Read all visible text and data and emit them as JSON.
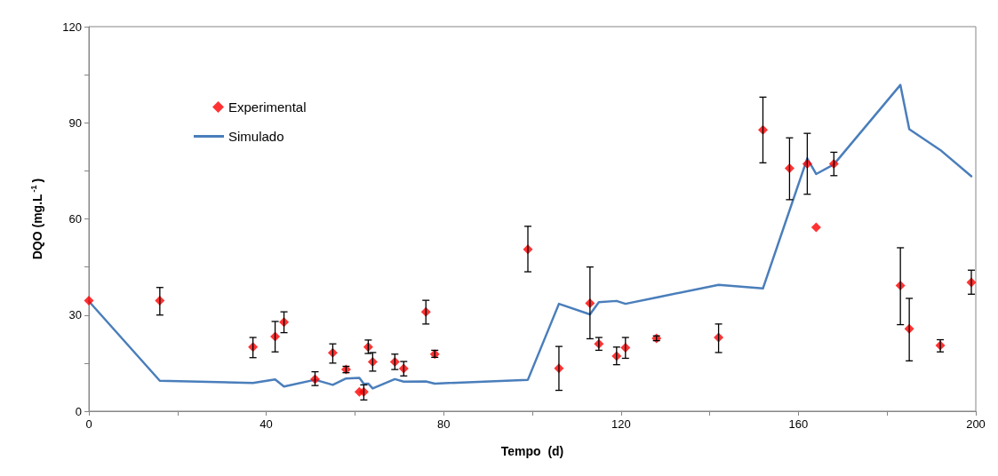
{
  "chart_data": {
    "type": "scatter",
    "xlabel": "Tempo  (d)",
    "ylabel": "DQO (mg.L$^{-1}$)",
    "xlim": [
      0,
      200
    ],
    "ylim": [
      0,
      120
    ],
    "xticks": [
      0,
      {
        "value": 20,
        "label": null
      },
      40,
      {
        "value": 60,
        "label": null
      },
      80,
      {
        "value": 100,
        "label": null
      },
      120,
      {
        "value": 140,
        "label": null
      },
      160,
      {
        "value": 180,
        "label": null
      },
      200
    ],
    "yticks": [
      0,
      {
        "value": 15,
        "label": null
      },
      30,
      {
        "value": 45,
        "label": null
      },
      60,
      {
        "value": 75,
        "label": null
      },
      90,
      {
        "value": 105,
        "label": null
      },
      120
    ],
    "grid": false,
    "legend": "top left",
    "series": [
      {
        "name": "Experimental",
        "marker": "diamond",
        "color": "#ff0000",
        "x": [
          0,
          16,
          37,
          42,
          44,
          51,
          55,
          58,
          61,
          62,
          63,
          64,
          69,
          71,
          76,
          78,
          99,
          106,
          113,
          115,
          119,
          121,
          128,
          142,
          152,
          158,
          162,
          164,
          168,
          183,
          185,
          192,
          199
        ],
        "values": [
          34.5,
          34.5,
          20,
          23.3,
          27.8,
          10,
          18.2,
          13,
          6,
          6,
          20,
          15.4,
          15.4,
          13.3,
          31,
          17.8,
          50.5,
          13.4,
          33.7,
          21,
          17.2,
          19.8,
          22.7,
          23,
          87.8,
          75.8,
          77.2,
          57.4,
          77.2,
          39.2,
          25.7,
          20.5,
          40.2
        ],
        "errors": [
          null,
          [
            30,
            38.6
          ],
          [
            16.7,
            23
          ],
          [
            18.5,
            28
          ],
          [
            24.5,
            31
          ],
          [
            8,
            12.3
          ],
          [
            15,
            21
          ],
          [
            12,
            14
          ],
          null,
          [
            3.5,
            8.2
          ],
          [
            18,
            22.2
          ],
          [
            12.5,
            18.3
          ],
          [
            13,
            17.8
          ],
          [
            11,
            15.5
          ],
          [
            27.2,
            34.6
          ],
          [
            16.8,
            19
          ],
          [
            43.5,
            57.7
          ],
          [
            6.5,
            20.2
          ],
          [
            22.6,
            45
          ],
          [
            19,
            23
          ],
          [
            14.5,
            20
          ],
          [
            16.5,
            23
          ],
          [
            22,
            23.5
          ],
          [
            18.3,
            27.2
          ],
          [
            77.5,
            98
          ],
          [
            66,
            85.3
          ],
          [
            67.7,
            86.7
          ],
          null,
          [
            73.5,
            80.8
          ],
          [
            27,
            51
          ],
          [
            15.7,
            35.2
          ],
          [
            18.5,
            22.3
          ],
          [
            36.5,
            44
          ]
        ]
      },
      {
        "name": "Simulado",
        "type": "line",
        "marker": "none",
        "line_style": "solid",
        "color": "#4a7ebb",
        "x": [
          0,
          16,
          37,
          42,
          44,
          51,
          55,
          58,
          61,
          62,
          63,
          64,
          69,
          71,
          76,
          78,
          99,
          106,
          113,
          115,
          119,
          121,
          128,
          142,
          152,
          162,
          164,
          168,
          183,
          185,
          192,
          199
        ],
        "values": [
          34.3,
          9.5,
          8.8,
          9.9,
          7.7,
          9.8,
          8.2,
          10.2,
          10.4,
          8.5,
          8.6,
          7.1,
          10,
          9.2,
          9.3,
          8.6,
          9.8,
          33.5,
          30.2,
          34,
          34.4,
          33.5,
          35.5,
          39.4,
          38.3,
          78.9,
          74,
          77,
          101.8,
          88,
          81.5,
          73.3
        ]
      }
    ]
  }
}
